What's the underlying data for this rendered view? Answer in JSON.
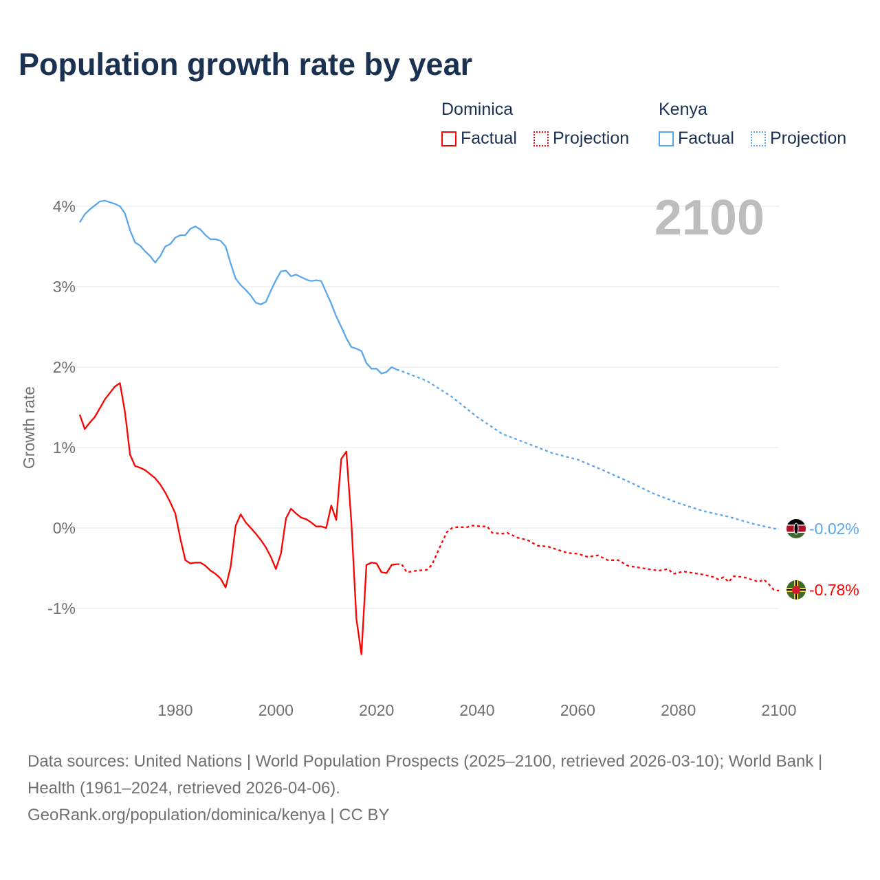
{
  "title": "Population growth rate by year",
  "legend": {
    "groups": [
      {
        "name": "Dominica",
        "color": "#ff0000",
        "factual": "Factual",
        "projection": "Projection"
      },
      {
        "name": "Kenya",
        "color": "#5aa6ec",
        "factual": "Factual",
        "projection": "Projection"
      }
    ]
  },
  "year_label": "2100",
  "end_labels": {
    "kenya": "-0.02%",
    "dominica": "-0.78%"
  },
  "footer": {
    "sources": "Data sources: United Nations | World Population Prospects (2025–2100, retrieved 2026-03-10); World Bank | Health (1961–2024, retrieved 2026-04-06).",
    "credit": "GeoRank.org/population/dominica/kenya | CC BY"
  },
  "chart_data": {
    "type": "line",
    "title": "Population growth rate by year",
    "xlabel": "",
    "ylabel": "Growth rate",
    "xlim": [
      1961,
      2100
    ],
    "ylim": [
      -2.1,
      4.4
    ],
    "xticks": [
      1980,
      2000,
      2020,
      2040,
      2060,
      2080,
      2100
    ],
    "yticks": [
      {
        "v": 4,
        "label": "4%"
      },
      {
        "v": 3,
        "label": "3%"
      },
      {
        "v": 2,
        "label": "2%"
      },
      {
        "v": 1,
        "label": "1%"
      },
      {
        "v": 0,
        "label": "0%"
      },
      {
        "v": -1,
        "label": "-1%"
      }
    ],
    "grid": true,
    "series": [
      {
        "name": "Kenya Factual",
        "color": "#5aa6ec",
        "dash": false,
        "x": [
          1961,
          1962,
          1963,
          1964,
          1965,
          1966,
          1967,
          1968,
          1969,
          1970,
          1971,
          1972,
          1973,
          1974,
          1975,
          1976,
          1977,
          1978,
          1979,
          1980,
          1981,
          1982,
          1983,
          1984,
          1985,
          1986,
          1987,
          1988,
          1989,
          1990,
          1991,
          1992,
          1993,
          1994,
          1995,
          1996,
          1997,
          1998,
          1999,
          2000,
          2001,
          2002,
          2003,
          2004,
          2005,
          2006,
          2007,
          2008,
          2009,
          2010,
          2011,
          2012,
          2013,
          2014,
          2015,
          2016,
          2017,
          2018,
          2019,
          2020,
          2021,
          2022,
          2023,
          2024
        ],
        "y": [
          3.8,
          3.9,
          3.96,
          4.01,
          4.06,
          4.07,
          4.05,
          4.03,
          4.0,
          3.91,
          3.7,
          3.55,
          3.51,
          3.44,
          3.38,
          3.3,
          3.38,
          3.5,
          3.53,
          3.61,
          3.64,
          3.64,
          3.72,
          3.75,
          3.71,
          3.64,
          3.59,
          3.59,
          3.57,
          3.5,
          3.29,
          3.1,
          3.02,
          2.96,
          2.89,
          2.8,
          2.78,
          2.81,
          2.95,
          3.08,
          3.19,
          3.2,
          3.13,
          3.15,
          3.12,
          3.09,
          3.07,
          3.08,
          3.07,
          2.93,
          2.79,
          2.63,
          2.5,
          2.36,
          2.25,
          2.23,
          2.2,
          2.05,
          1.98,
          1.98,
          1.92,
          1.94,
          2.0,
          1.97
        ]
      },
      {
        "name": "Kenya Projection",
        "color": "#5aa6ec",
        "dash": true,
        "x": [
          2024,
          2025,
          2030,
          2035,
          2040,
          2045,
          2050,
          2055,
          2060,
          2065,
          2070,
          2075,
          2080,
          2085,
          2090,
          2095,
          2100
        ],
        "y": [
          1.97,
          1.95,
          1.83,
          1.63,
          1.38,
          1.17,
          1.05,
          0.93,
          0.85,
          0.72,
          0.58,
          0.43,
          0.31,
          0.21,
          0.14,
          0.05,
          -0.02
        ]
      },
      {
        "name": "Dominica Factual",
        "color": "#ff0000",
        "dash": false,
        "x": [
          1961,
          1962,
          1963,
          1964,
          1965,
          1966,
          1967,
          1968,
          1969,
          1970,
          1971,
          1972,
          1973,
          1974,
          1975,
          1976,
          1977,
          1978,
          1979,
          1980,
          1981,
          1982,
          1983,
          1984,
          1985,
          1986,
          1987,
          1988,
          1989,
          1990,
          1991,
          1992,
          1993,
          1994,
          1995,
          1996,
          1997,
          1998,
          1999,
          2000,
          2001,
          2002,
          2003,
          2004,
          2005,
          2006,
          2007,
          2008,
          2009,
          2010,
          2011,
          2012,
          2013,
          2014,
          2015,
          2016,
          2017,
          2018,
          2019,
          2020,
          2021,
          2022,
          2023,
          2024
        ],
        "y": [
          1.41,
          1.23,
          1.31,
          1.38,
          1.49,
          1.6,
          1.68,
          1.76,
          1.8,
          1.44,
          0.91,
          0.77,
          0.75,
          0.72,
          0.67,
          0.62,
          0.54,
          0.44,
          0.32,
          0.18,
          -0.13,
          -0.4,
          -0.44,
          -0.43,
          -0.43,
          -0.47,
          -0.53,
          -0.57,
          -0.63,
          -0.74,
          -0.48,
          0.03,
          0.17,
          0.07,
          0.0,
          -0.07,
          -0.15,
          -0.24,
          -0.36,
          -0.51,
          -0.32,
          0.12,
          0.24,
          0.18,
          0.13,
          0.11,
          0.07,
          0.02,
          0.02,
          0.0,
          0.28,
          0.1,
          0.86,
          0.95,
          0.07,
          -1.13,
          -1.57,
          -0.46,
          -0.43,
          -0.44,
          -0.55,
          -0.56,
          -0.46,
          -0.45
        ]
      },
      {
        "name": "Dominica Projection",
        "color": "#ff0000",
        "dash": true,
        "x": [
          2024,
          2025,
          2026,
          2028,
          2030,
          2031,
          2032,
          2033,
          2034,
          2035,
          2036,
          2038,
          2039,
          2041,
          2042,
          2043,
          2045,
          2046,
          2048,
          2050,
          2052,
          2054,
          2056,
          2058,
          2060,
          2062,
          2064,
          2066,
          2068,
          2070,
          2072,
          2074,
          2076,
          2078,
          2079,
          2081,
          2083,
          2085,
          2087,
          2088,
          2089,
          2090,
          2091,
          2093,
          2095,
          2096,
          2097,
          2098,
          2099,
          2100
        ],
        "y": [
          -0.45,
          -0.45,
          -0.55,
          -0.53,
          -0.52,
          -0.46,
          -0.32,
          -0.18,
          -0.05,
          0.0,
          0.01,
          0.01,
          0.03,
          0.02,
          0.02,
          -0.06,
          -0.07,
          -0.06,
          -0.12,
          -0.15,
          -0.22,
          -0.23,
          -0.27,
          -0.31,
          -0.32,
          -0.36,
          -0.34,
          -0.4,
          -0.4,
          -0.47,
          -0.49,
          -0.51,
          -0.53,
          -0.51,
          -0.57,
          -0.54,
          -0.56,
          -0.58,
          -0.61,
          -0.64,
          -0.61,
          -0.67,
          -0.6,
          -0.61,
          -0.65,
          -0.67,
          -0.64,
          -0.7,
          -0.77,
          -0.78
        ]
      }
    ]
  }
}
